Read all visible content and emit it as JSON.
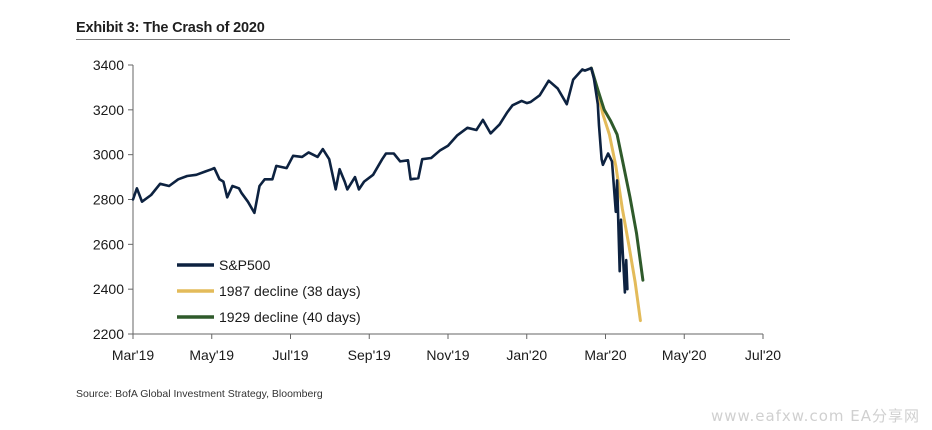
{
  "header": {
    "title": "Exhibit 3: The Crash of 2020"
  },
  "footer": {
    "source": "Source: BofA Global Investment Strategy, Bloomberg",
    "watermark": "www.eafxw.com EA分享网"
  },
  "chart_data": {
    "type": "line",
    "title": "Exhibit 3: The Crash of 2020",
    "xlabel": "",
    "ylabel": "",
    "xlim": [
      "2019-03-01",
      "2020-07-01"
    ],
    "ylim": [
      2200,
      3400
    ],
    "x_ticks": [
      "Mar'19",
      "May'19",
      "Jul'19",
      "Sep'19",
      "Nov'19",
      "Jan'20",
      "Mar'20",
      "May'20",
      "Jul'20"
    ],
    "y_ticks": [
      "2200",
      "2400",
      "2600",
      "2800",
      "3000",
      "3200",
      "3400"
    ],
    "grid": false,
    "legend_position": "bottom-left",
    "series": [
      {
        "name": "S&P500",
        "color": "#0d2240",
        "points": [
          [
            "2019-03-01",
            2800
          ],
          [
            "2019-03-04",
            2850
          ],
          [
            "2019-03-08",
            2790
          ],
          [
            "2019-03-15",
            2820
          ],
          [
            "2019-03-22",
            2870
          ],
          [
            "2019-03-29",
            2860
          ],
          [
            "2019-04-05",
            2890
          ],
          [
            "2019-04-12",
            2905
          ],
          [
            "2019-04-19",
            2910
          ],
          [
            "2019-04-26",
            2925
          ],
          [
            "2019-05-01",
            2935
          ],
          [
            "2019-05-03",
            2940
          ],
          [
            "2019-05-07",
            2890
          ],
          [
            "2019-05-10",
            2880
          ],
          [
            "2019-05-13",
            2810
          ],
          [
            "2019-05-17",
            2860
          ],
          [
            "2019-05-22",
            2850
          ],
          [
            "2019-05-24",
            2830
          ],
          [
            "2019-05-29",
            2790
          ],
          [
            "2019-06-03",
            2740
          ],
          [
            "2019-06-07",
            2860
          ],
          [
            "2019-06-11",
            2890
          ],
          [
            "2019-06-17",
            2890
          ],
          [
            "2019-06-20",
            2950
          ],
          [
            "2019-06-28",
            2940
          ],
          [
            "2019-07-03",
            2995
          ],
          [
            "2019-07-10",
            2990
          ],
          [
            "2019-07-15",
            3010
          ],
          [
            "2019-07-22",
            2990
          ],
          [
            "2019-07-26",
            3025
          ],
          [
            "2019-07-31",
            2980
          ],
          [
            "2019-08-05",
            2845
          ],
          [
            "2019-08-08",
            2935
          ],
          [
            "2019-08-12",
            2880
          ],
          [
            "2019-08-14",
            2845
          ],
          [
            "2019-08-20",
            2900
          ],
          [
            "2019-08-23",
            2845
          ],
          [
            "2019-08-27",
            2880
          ],
          [
            "2019-09-03",
            2910
          ],
          [
            "2019-09-10",
            2980
          ],
          [
            "2019-09-13",
            3005
          ],
          [
            "2019-09-19",
            3005
          ],
          [
            "2019-09-24",
            2970
          ],
          [
            "2019-09-30",
            2975
          ],
          [
            "2019-10-02",
            2890
          ],
          [
            "2019-10-08",
            2895
          ],
          [
            "2019-10-11",
            2980
          ],
          [
            "2019-10-18",
            2985
          ],
          [
            "2019-10-25",
            3020
          ],
          [
            "2019-10-31",
            3040
          ],
          [
            "2019-11-07",
            3085
          ],
          [
            "2019-11-15",
            3120
          ],
          [
            "2019-11-22",
            3110
          ],
          [
            "2019-11-27",
            3155
          ],
          [
            "2019-12-03",
            3095
          ],
          [
            "2019-12-10",
            3135
          ],
          [
            "2019-12-16",
            3190
          ],
          [
            "2019-12-20",
            3220
          ],
          [
            "2019-12-27",
            3240
          ],
          [
            "2019-12-31",
            3230
          ],
          [
            "2020-01-03",
            3235
          ],
          [
            "2020-01-10",
            3265
          ],
          [
            "2020-01-17",
            3330
          ],
          [
            "2020-01-24",
            3295
          ],
          [
            "2020-01-31",
            3225
          ],
          [
            "2020-02-05",
            3335
          ],
          [
            "2020-02-12",
            3380
          ],
          [
            "2020-02-14",
            3375
          ],
          [
            "2020-02-19",
            3386
          ],
          [
            "2020-02-21",
            3340
          ],
          [
            "2020-02-24",
            3225
          ],
          [
            "2020-02-25",
            3130
          ],
          [
            "2020-02-27",
            2980
          ],
          [
            "2020-02-28",
            2955
          ],
          [
            "2020-03-03",
            3005
          ],
          [
            "2020-03-06",
            2970
          ],
          [
            "2020-03-09",
            2745
          ],
          [
            "2020-03-10",
            2885
          ],
          [
            "2020-03-12",
            2480
          ],
          [
            "2020-03-13",
            2710
          ],
          [
            "2020-03-16",
            2385
          ],
          [
            "2020-03-17",
            2530
          ],
          [
            "2020-03-18",
            2400
          ]
        ]
      },
      {
        "name": "1987 decline (38 days)",
        "color": "#e3bb5a",
        "points": [
          [
            "2020-02-19",
            3386
          ],
          [
            "2020-02-24",
            3280
          ],
          [
            "2020-02-28",
            3180
          ],
          [
            "2020-03-04",
            3090
          ],
          [
            "2020-03-09",
            2950
          ],
          [
            "2020-03-14",
            2760
          ],
          [
            "2020-03-19",
            2600
          ],
          [
            "2020-03-24",
            2430
          ],
          [
            "2020-03-28",
            2260
          ]
        ]
      },
      {
        "name": "1929 decline (40 days)",
        "color": "#2f5a2b",
        "points": [
          [
            "2020-02-19",
            3386
          ],
          [
            "2020-02-24",
            3290
          ],
          [
            "2020-02-29",
            3200
          ],
          [
            "2020-03-05",
            3150
          ],
          [
            "2020-03-10",
            3090
          ],
          [
            "2020-03-15",
            2950
          ],
          [
            "2020-03-20",
            2810
          ],
          [
            "2020-03-25",
            2650
          ],
          [
            "2020-03-30",
            2440
          ]
        ]
      }
    ]
  }
}
